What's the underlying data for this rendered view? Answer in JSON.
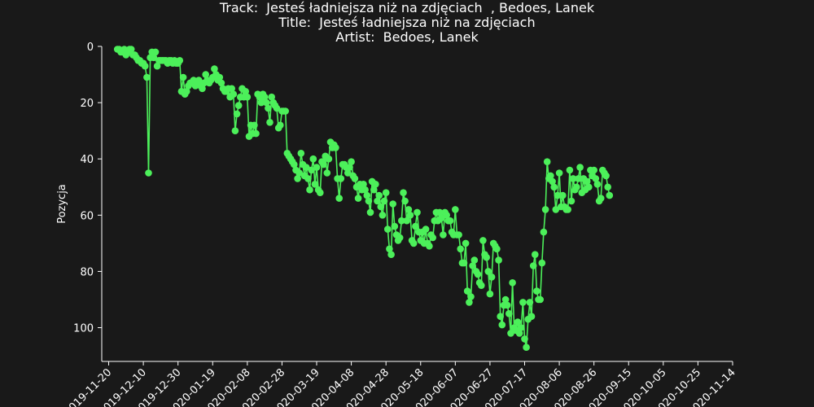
{
  "header": {
    "line1": "Track:  Jesteś ładniejsza niż na zdjęciach  , Bedoes, Lanek",
    "line2": "Title:  Jesteś ładniejsza niż na zdjęciach",
    "line3": "Artist:  Bedoes, Lanek"
  },
  "colors": {
    "background": "#191919",
    "line": "#4cf05a",
    "axis": "#ffffff"
  },
  "chart_data": {
    "type": "line",
    "title": "Track:  Jesteś ładniejsza niż na zdjęciach  , Bedoes, Lanek\nTitle:  Jesteś ładniejsza niż na zdjęciach\nArtist:  Bedoes, Lanek",
    "xlabel": "",
    "ylabel": "Pozycja",
    "y_inverted": true,
    "xlim": [
      "2019-11-16",
      "2020-11-14"
    ],
    "ylim": [
      0,
      112
    ],
    "x_ticks": [
      "2019-11-20",
      "2019-12-10",
      "2019-12-30",
      "2020-01-19",
      "2020-02-08",
      "2020-02-28",
      "2020-03-19",
      "2020-04-08",
      "2020-04-28",
      "2020-05-18",
      "2020-06-07",
      "2020-06-27",
      "2020-07-17",
      "2020-08-06",
      "2020-08-26",
      "2020-09-15",
      "2020-10-05",
      "2020-10-25",
      "2020-11-14"
    ],
    "y_ticks": [
      0,
      20,
      40,
      60,
      80,
      100
    ],
    "grid": false,
    "series": [
      {
        "points": [
          [
            "2019-11-25",
            1
          ],
          [
            "2019-11-26",
            1
          ],
          [
            "2019-11-27",
            2
          ],
          [
            "2019-11-28",
            2
          ],
          [
            "2019-11-29",
            1
          ],
          [
            "2019-11-30",
            3
          ],
          [
            "2019-12-01",
            2
          ],
          [
            "2019-12-02",
            1
          ],
          [
            "2019-12-03",
            1
          ],
          [
            "2019-12-04",
            3
          ],
          [
            "2019-12-05",
            3
          ],
          [
            "2019-12-06",
            4
          ],
          [
            "2019-12-07",
            5
          ],
          [
            "2019-12-08",
            5
          ],
          [
            "2019-12-09",
            6
          ],
          [
            "2019-12-10",
            6
          ],
          [
            "2019-12-11",
            7
          ],
          [
            "2019-12-12",
            11
          ],
          [
            "2019-12-13",
            45
          ],
          [
            "2019-12-14",
            4
          ],
          [
            "2019-12-15",
            2
          ],
          [
            "2019-12-16",
            4
          ],
          [
            "2019-12-17",
            2
          ],
          [
            "2019-12-18",
            7
          ],
          [
            "2019-12-19",
            5
          ],
          [
            "2019-12-20",
            5
          ],
          [
            "2019-12-21",
            5
          ],
          [
            "2019-12-22",
            5
          ],
          [
            "2019-12-23",
            5
          ],
          [
            "2019-12-24",
            6
          ],
          [
            "2019-12-25",
            5
          ],
          [
            "2019-12-26",
            5
          ],
          [
            "2019-12-27",
            6
          ],
          [
            "2019-12-28",
            5
          ],
          [
            "2019-12-29",
            6
          ],
          [
            "2019-12-30",
            6
          ],
          [
            "2019-12-31",
            5
          ],
          [
            "2020-01-01",
            16
          ],
          [
            "2020-01-02",
            11
          ],
          [
            "2020-01-03",
            17
          ],
          [
            "2020-01-04",
            16
          ],
          [
            "2020-01-05",
            14
          ],
          [
            "2020-01-06",
            13
          ],
          [
            "2020-01-07",
            13
          ],
          [
            "2020-01-08",
            12
          ],
          [
            "2020-01-09",
            14
          ],
          [
            "2020-01-10",
            13
          ],
          [
            "2020-01-11",
            12
          ],
          [
            "2020-01-12",
            14
          ],
          [
            "2020-01-13",
            15
          ],
          [
            "2020-01-14",
            13
          ],
          [
            "2020-01-15",
            10
          ],
          [
            "2020-01-16",
            12
          ],
          [
            "2020-01-17",
            13
          ],
          [
            "2020-01-18",
            12
          ],
          [
            "2020-01-19",
            11
          ],
          [
            "2020-01-20",
            8
          ],
          [
            "2020-01-21",
            10
          ],
          [
            "2020-01-22",
            12
          ],
          [
            "2020-01-23",
            11
          ],
          [
            "2020-01-24",
            13
          ],
          [
            "2020-01-25",
            15
          ],
          [
            "2020-01-26",
            16
          ],
          [
            "2020-01-27",
            16
          ],
          [
            "2020-01-28",
            15
          ],
          [
            "2020-01-29",
            18
          ],
          [
            "2020-01-30",
            15
          ],
          [
            "2020-01-31",
            17
          ],
          [
            "2020-02-01",
            30
          ],
          [
            "2020-02-02",
            24
          ],
          [
            "2020-02-03",
            21
          ],
          [
            "2020-02-04",
            18
          ],
          [
            "2020-02-05",
            15
          ],
          [
            "2020-02-06",
            18
          ],
          [
            "2020-02-07",
            16
          ],
          [
            "2020-02-08",
            18
          ],
          [
            "2020-02-09",
            32
          ],
          [
            "2020-02-10",
            28
          ],
          [
            "2020-02-11",
            31
          ],
          [
            "2020-02-12",
            28
          ],
          [
            "2020-02-13",
            31
          ],
          [
            "2020-02-14",
            17
          ],
          [
            "2020-02-15",
            18
          ],
          [
            "2020-02-16",
            20
          ],
          [
            "2020-02-17",
            17
          ],
          [
            "2020-02-18",
            18
          ],
          [
            "2020-02-19",
            20
          ],
          [
            "2020-02-20",
            22
          ],
          [
            "2020-02-21",
            27
          ],
          [
            "2020-02-22",
            18
          ],
          [
            "2020-02-23",
            20
          ],
          [
            "2020-02-24",
            21
          ],
          [
            "2020-02-25",
            22
          ],
          [
            "2020-02-26",
            29
          ],
          [
            "2020-02-27",
            28
          ],
          [
            "2020-02-28",
            23
          ],
          [
            "2020-02-29",
            23
          ],
          [
            "2020-03-01",
            23
          ],
          [
            "2020-03-02",
            38
          ],
          [
            "2020-03-03",
            39
          ],
          [
            "2020-03-04",
            40
          ],
          [
            "2020-03-05",
            41
          ],
          [
            "2020-03-06",
            42
          ],
          [
            "2020-03-07",
            44
          ],
          [
            "2020-03-08",
            47
          ],
          [
            "2020-03-09",
            45
          ],
          [
            "2020-03-10",
            38
          ],
          [
            "2020-03-11",
            42
          ],
          [
            "2020-03-12",
            46
          ],
          [
            "2020-03-13",
            43
          ],
          [
            "2020-03-14",
            47
          ],
          [
            "2020-03-15",
            51
          ],
          [
            "2020-03-16",
            44
          ],
          [
            "2020-03-17",
            40
          ],
          [
            "2020-03-18",
            49
          ],
          [
            "2020-03-19",
            43
          ],
          [
            "2020-03-20",
            51
          ],
          [
            "2020-03-21",
            52
          ],
          [
            "2020-03-22",
            41
          ],
          [
            "2020-03-23",
            42
          ],
          [
            "2020-03-24",
            39
          ],
          [
            "2020-03-25",
            45
          ],
          [
            "2020-03-26",
            40
          ],
          [
            "2020-03-27",
            34
          ],
          [
            "2020-03-28",
            36
          ],
          [
            "2020-03-29",
            35
          ],
          [
            "2020-03-30",
            36
          ],
          [
            "2020-03-31",
            47
          ],
          [
            "2020-04-01",
            54
          ],
          [
            "2020-04-02",
            47
          ],
          [
            "2020-04-03",
            42
          ],
          [
            "2020-04-04",
            42
          ],
          [
            "2020-04-05",
            43
          ],
          [
            "2020-04-06",
            45
          ],
          [
            "2020-04-07",
            43
          ],
          [
            "2020-04-08",
            41
          ],
          [
            "2020-04-09",
            46
          ],
          [
            "2020-04-10",
            47
          ],
          [
            "2020-04-11",
            50
          ],
          [
            "2020-04-12",
            54
          ],
          [
            "2020-04-13",
            49
          ],
          [
            "2020-04-14",
            51
          ],
          [
            "2020-04-15",
            49
          ],
          [
            "2020-04-16",
            51
          ],
          [
            "2020-04-17",
            53
          ],
          [
            "2020-04-18",
            55
          ],
          [
            "2020-04-19",
            59
          ],
          [
            "2020-04-20",
            48
          ],
          [
            "2020-04-21",
            51
          ],
          [
            "2020-04-22",
            49
          ],
          [
            "2020-04-23",
            55
          ],
          [
            "2020-04-24",
            53
          ],
          [
            "2020-04-25",
            57
          ],
          [
            "2020-04-26",
            60
          ],
          [
            "2020-04-27",
            55
          ],
          [
            "2020-04-28",
            52
          ],
          [
            "2020-04-29",
            65
          ],
          [
            "2020-04-30",
            72
          ],
          [
            "2020-05-01",
            74
          ],
          [
            "2020-05-02",
            56
          ],
          [
            "2020-05-03",
            64
          ],
          [
            "2020-05-04",
            67
          ],
          [
            "2020-05-05",
            69
          ],
          [
            "2020-05-06",
            68
          ],
          [
            "2020-05-07",
            62
          ],
          [
            "2020-05-08",
            52
          ],
          [
            "2020-05-09",
            55
          ],
          [
            "2020-05-10",
            62
          ],
          [
            "2020-05-11",
            58
          ],
          [
            "2020-05-12",
            60
          ],
          [
            "2020-05-13",
            69
          ],
          [
            "2020-05-14",
            70
          ],
          [
            "2020-05-15",
            64
          ],
          [
            "2020-05-16",
            59
          ],
          [
            "2020-05-17",
            66
          ],
          [
            "2020-05-18",
            69
          ],
          [
            "2020-05-19",
            66
          ],
          [
            "2020-05-20",
            70
          ],
          [
            "2020-05-21",
            65
          ],
          [
            "2020-05-22",
            70
          ],
          [
            "2020-05-23",
            71
          ],
          [
            "2020-05-24",
            67
          ],
          [
            "2020-05-25",
            68
          ],
          [
            "2020-05-26",
            62
          ],
          [
            "2020-05-27",
            59
          ],
          [
            "2020-05-28",
            62
          ],
          [
            "2020-05-29",
            59
          ],
          [
            "2020-05-30",
            61
          ],
          [
            "2020-05-31",
            67
          ],
          [
            "2020-06-01",
            59
          ],
          [
            "2020-06-02",
            60
          ],
          [
            "2020-06-03",
            62
          ],
          [
            "2020-06-04",
            62
          ],
          [
            "2020-06-05",
            66
          ],
          [
            "2020-06-06",
            67
          ],
          [
            "2020-06-07",
            58
          ],
          [
            "2020-06-08",
            67
          ],
          [
            "2020-06-09",
            67
          ],
          [
            "2020-06-10",
            72
          ],
          [
            "2020-06-11",
            77
          ],
          [
            "2020-06-12",
            77
          ],
          [
            "2020-06-13",
            70
          ],
          [
            "2020-06-14",
            87
          ],
          [
            "2020-06-15",
            91
          ],
          [
            "2020-06-16",
            89
          ],
          [
            "2020-06-17",
            78
          ],
          [
            "2020-06-18",
            76
          ],
          [
            "2020-06-19",
            80
          ],
          [
            "2020-06-20",
            81
          ],
          [
            "2020-06-21",
            84
          ],
          [
            "2020-06-22",
            85
          ],
          [
            "2020-06-23",
            69
          ],
          [
            "2020-06-24",
            74
          ],
          [
            "2020-06-25",
            75
          ],
          [
            "2020-06-26",
            80
          ],
          [
            "2020-06-27",
            88
          ],
          [
            "2020-06-28",
            82
          ],
          [
            "2020-06-29",
            70
          ],
          [
            "2020-06-30",
            71
          ],
          [
            "2020-07-01",
            72
          ],
          [
            "2020-07-02",
            76
          ],
          [
            "2020-07-03",
            96
          ],
          [
            "2020-07-04",
            99
          ],
          [
            "2020-07-05",
            92
          ],
          [
            "2020-07-06",
            90
          ],
          [
            "2020-07-07",
            92
          ],
          [
            "2020-07-08",
            95
          ],
          [
            "2020-07-09",
            102
          ],
          [
            "2020-07-10",
            84
          ],
          [
            "2020-07-11",
            100
          ],
          [
            "2020-07-12",
            101
          ],
          [
            "2020-07-13",
            98
          ],
          [
            "2020-07-14",
            102
          ],
          [
            "2020-07-15",
            100
          ],
          [
            "2020-07-16",
            91
          ],
          [
            "2020-07-17",
            104
          ],
          [
            "2020-07-18",
            107
          ],
          [
            "2020-07-19",
            97
          ],
          [
            "2020-07-20",
            91
          ],
          [
            "2020-07-21",
            96
          ],
          [
            "2020-07-22",
            78
          ],
          [
            "2020-07-23",
            74
          ],
          [
            "2020-07-24",
            87
          ],
          [
            "2020-07-25",
            90
          ],
          [
            "2020-07-26",
            90
          ],
          [
            "2020-07-27",
            77
          ],
          [
            "2020-07-28",
            66
          ],
          [
            "2020-07-29",
            58
          ],
          [
            "2020-07-30",
            41
          ],
          [
            "2020-07-31",
            47
          ],
          [
            "2020-08-01",
            46
          ],
          [
            "2020-08-02",
            48
          ],
          [
            "2020-08-03",
            50
          ],
          [
            "2020-08-04",
            58
          ],
          [
            "2020-08-05",
            53
          ],
          [
            "2020-08-06",
            45
          ],
          [
            "2020-08-07",
            57
          ],
          [
            "2020-08-08",
            53
          ],
          [
            "2020-08-09",
            57
          ],
          [
            "2020-08-10",
            58
          ],
          [
            "2020-08-11",
            58
          ],
          [
            "2020-08-12",
            44
          ],
          [
            "2020-08-13",
            55
          ],
          [
            "2020-08-14",
            47
          ],
          [
            "2020-08-15",
            51
          ],
          [
            "2020-08-16",
            50
          ],
          [
            "2020-08-17",
            47
          ],
          [
            "2020-08-18",
            43
          ],
          [
            "2020-08-19",
            52
          ],
          [
            "2020-08-20",
            47
          ],
          [
            "2020-08-21",
            51
          ],
          [
            "2020-08-22",
            48
          ],
          [
            "2020-08-23",
            50
          ],
          [
            "2020-08-24",
            44
          ],
          [
            "2020-08-25",
            46
          ],
          [
            "2020-08-26",
            44
          ],
          [
            "2020-08-27",
            47
          ],
          [
            "2020-08-28",
            49
          ],
          [
            "2020-08-29",
            55
          ],
          [
            "2020-08-30",
            54
          ],
          [
            "2020-08-31",
            44
          ],
          [
            "2020-09-01",
            45
          ],
          [
            "2020-09-02",
            46
          ],
          [
            "2020-09-03",
            50
          ],
          [
            "2020-09-04",
            53
          ]
        ]
      }
    ]
  }
}
